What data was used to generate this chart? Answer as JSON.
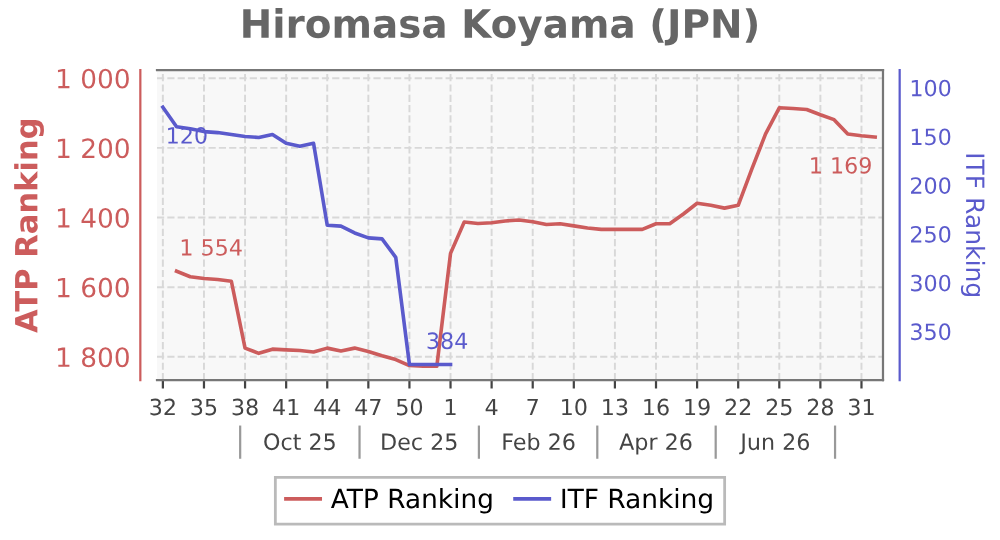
{
  "chart_data": {
    "type": "line",
    "title": "Hiromasa Koyama (JPN)",
    "ylabel": "ATP Ranking",
    "y2label": "ITF Ranking",
    "x": [
      "2025-08-04",
      "2025-08-11",
      "2025-08-18",
      "2025-08-25",
      "2025-09-01",
      "2025-09-08",
      "2025-09-15",
      "2025-09-22",
      "2025-09-29",
      "2025-10-06",
      "2025-10-13",
      "2025-10-20",
      "2025-10-27",
      "2025-11-03",
      "2025-11-10",
      "2025-11-17",
      "2025-11-24",
      "2025-12-01",
      "2025-12-08",
      "2025-12-15",
      "2025-12-22",
      "2025-12-29",
      "2026-01-05",
      "2026-01-12",
      "2026-01-19",
      "2026-01-26",
      "2026-02-02",
      "2026-02-09",
      "2026-02-16",
      "2026-02-23",
      "2026-03-02",
      "2026-03-09",
      "2026-03-16",
      "2026-03-23",
      "2026-03-30",
      "2026-04-06",
      "2026-04-13",
      "2026-04-20",
      "2026-04-27",
      "2026-05-04",
      "2026-05-11",
      "2026-05-18",
      "2026-05-25",
      "2026-06-01",
      "2026-06-08",
      "2026-06-15",
      "2026-06-22",
      "2026-06-29",
      "2026-07-06",
      "2026-07-13",
      "2026-07-20",
      "2026-07-27",
      "2026-08-03"
    ],
    "series": [
      {
        "name": "ATP Ranking",
        "color": "#cc5c5c",
        "axis": "y",
        "values": [
          null,
          1554,
          1570,
          1575,
          1578,
          1583,
          1775,
          1790,
          1778,
          1780,
          1782,
          1786,
          1775,
          1783,
          1775,
          1785,
          1797,
          1808,
          1825,
          1827,
          1827,
          1503,
          1413,
          1417,
          1415,
          1410,
          1407,
          1412,
          1420,
          1418,
          1424,
          1430,
          1434,
          1434,
          1434,
          1434,
          1418,
          1418,
          1390,
          1359,
          1365,
          1373,
          1365,
          1260,
          1160,
          1085,
          1087,
          1090,
          1105,
          1119,
          1160,
          1165,
          1169
        ],
        "value_labels": [
          null,
          "1 554",
          null,
          null,
          null,
          null,
          null,
          null,
          null,
          null,
          null,
          null,
          null,
          null,
          null,
          null,
          null,
          null,
          null,
          null,
          null,
          null,
          null,
          null,
          null,
          null,
          null,
          null,
          null,
          null,
          null,
          null,
          null,
          null,
          null,
          null,
          null,
          null,
          null,
          null,
          null,
          null,
          null,
          null,
          null,
          null,
          null,
          null,
          null,
          null,
          null,
          null,
          "1 169"
        ]
      },
      {
        "name": "ITF Ranking",
        "color": "#5a5acc",
        "axis": "y2",
        "values": [
          120,
          140,
          142,
          145,
          146,
          148,
          150,
          151,
          148,
          157,
          160,
          157,
          241,
          242,
          249,
          254,
          255,
          274,
          384,
          384,
          384,
          384,
          null,
          null,
          null,
          null,
          null,
          null,
          null,
          null,
          null,
          null,
          null,
          null,
          null,
          null,
          null,
          null,
          null,
          null,
          null,
          null,
          null,
          null,
          null,
          null,
          null,
          null,
          null,
          null,
          null,
          null,
          null
        ],
        "value_labels": [
          "120",
          null,
          null,
          null,
          null,
          null,
          null,
          null,
          null,
          null,
          null,
          null,
          null,
          null,
          null,
          null,
          null,
          null,
          null,
          "384",
          null,
          null,
          null,
          null,
          null,
          null,
          null,
          null,
          null,
          null,
          null,
          null,
          null,
          null,
          null,
          null,
          null,
          null,
          null,
          null,
          null,
          null,
          null,
          null,
          null,
          null,
          null,
          null,
          null,
          null,
          null,
          null,
          null
        ]
      }
    ],
    "xlim": [
      "2025-08-01",
      "2026-08-07"
    ],
    "xticks": [
      {
        "value": "2025-08-04",
        "label": "32"
      },
      {
        "value": "2025-08-25",
        "label": "35"
      },
      {
        "value": "2025-09-15",
        "label": "38"
      },
      {
        "value": "2025-10-06",
        "label": "41"
      },
      {
        "value": "2025-10-27",
        "label": "44"
      },
      {
        "value": "2025-11-17",
        "label": "47"
      },
      {
        "value": "2025-12-08",
        "label": "50"
      },
      {
        "value": "2025-12-29",
        "label": "1"
      },
      {
        "value": "2026-01-19",
        "label": "4"
      },
      {
        "value": "2026-02-09",
        "label": "7"
      },
      {
        "value": "2026-03-02",
        "label": "10"
      },
      {
        "value": "2026-03-23",
        "label": "13"
      },
      {
        "value": "2026-04-13",
        "label": "16"
      },
      {
        "value": "2026-05-04",
        "label": "19"
      },
      {
        "value": "2026-05-25",
        "label": "22"
      },
      {
        "value": "2026-06-15",
        "label": "25"
      },
      {
        "value": "2026-07-06",
        "label": "28"
      },
      {
        "value": "2026-07-27",
        "label": "31"
      }
    ],
    "x2lim": [
      "2025-08-01",
      "2026-08-07"
    ],
    "x2ticks": [
      {
        "value": "2025-10-13",
        "label": "Oct 25"
      },
      {
        "value": "2025-12-13",
        "label": "Dec 25"
      },
      {
        "value": "2026-02-12",
        "label": "Feb 26"
      },
      {
        "value": "2026-04-13",
        "label": "Apr 26"
      },
      {
        "value": "2026-06-13",
        "label": "Jun 26"
      }
    ],
    "ylim": [
      1867,
      977
    ],
    "yticks": [
      {
        "value": 1000,
        "label": "1 000"
      },
      {
        "value": 1200,
        "label": "1 200"
      },
      {
        "value": 1400,
        "label": "1 400"
      },
      {
        "value": 1600,
        "label": "1 600"
      },
      {
        "value": 1800,
        "label": "1 800"
      }
    ],
    "y2lim": [
      400,
      82
    ],
    "y2ticks": [
      100,
      150,
      200,
      250,
      300,
      350
    ],
    "grid": true,
    "legend": "bottom",
    "marker": "none",
    "line_style": "solid"
  }
}
